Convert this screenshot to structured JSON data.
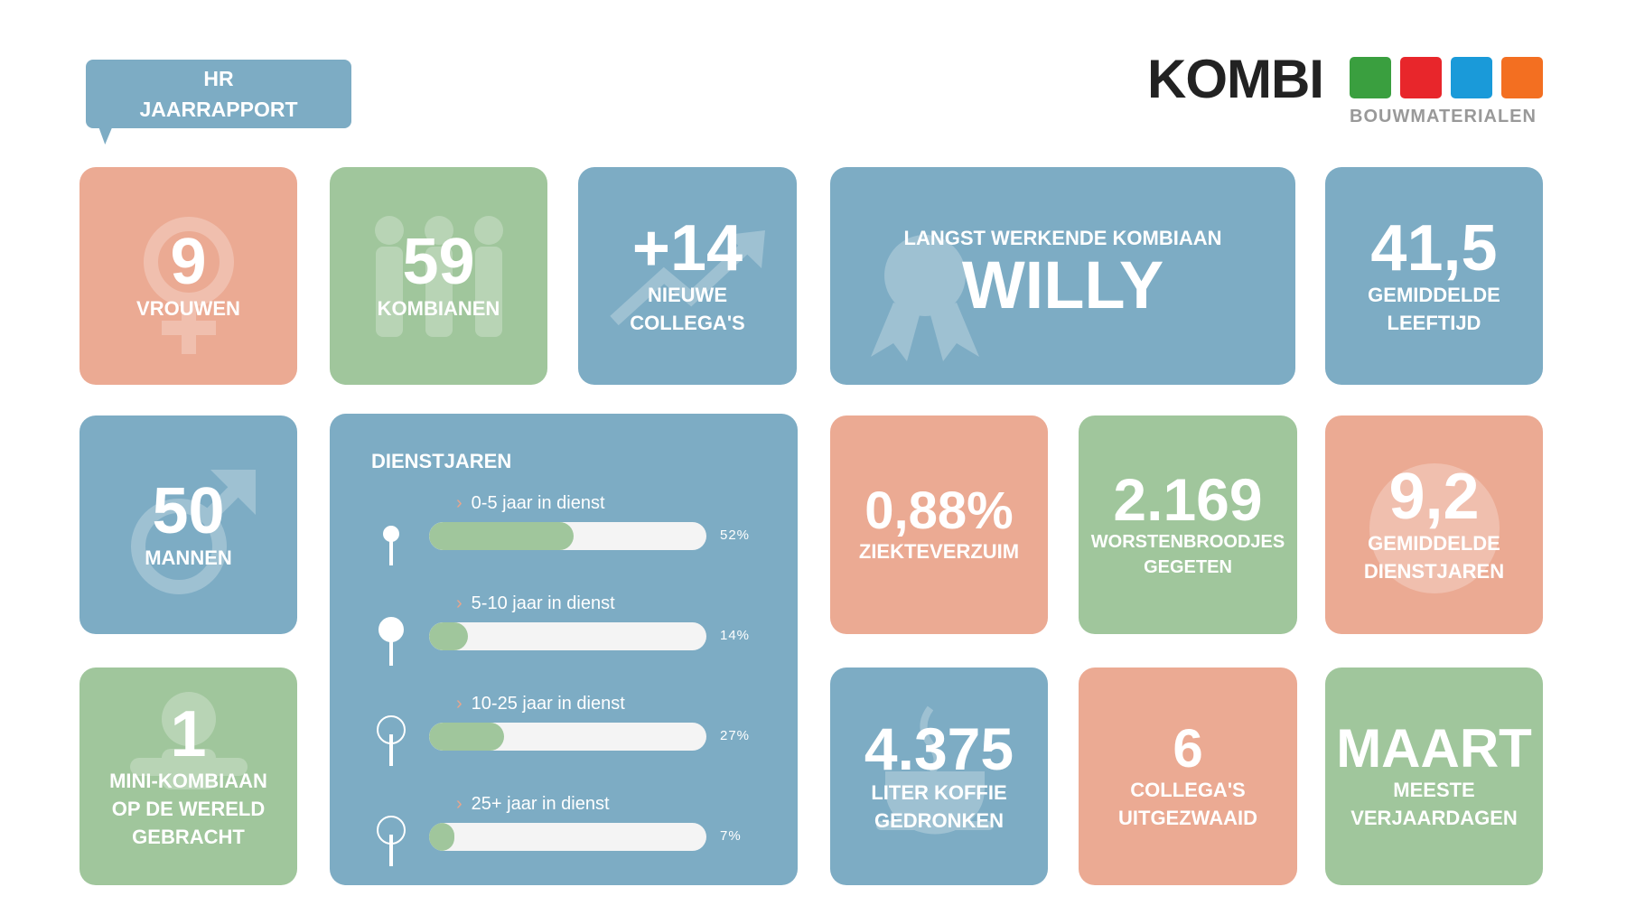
{
  "header": {
    "title_line1": "HR",
    "title_line2": "JAARRAPPORT"
  },
  "logo": {
    "name": "KOMBI",
    "tagline": "BOUWMATERIALEN",
    "colors": [
      "#3a9f3f",
      "#e8262b",
      "#1a9ad9",
      "#f36f21"
    ]
  },
  "colors": {
    "salmon": "#ebaa93",
    "green": "#a0c69c",
    "blue": "#7dacc4"
  },
  "tiles": {
    "vrouwen": {
      "value": "9",
      "label": "VROUWEN",
      "icon": "female-symbol-icon"
    },
    "kombianen": {
      "value": "59",
      "label": "KOMBIANEN",
      "icon": "people-icon"
    },
    "nieuwe": {
      "value": "+14",
      "label1": "NIEUWE",
      "label2": "COLLEGA'S",
      "icon": "trend-up-icon"
    },
    "langst": {
      "label": "LANGST WERKENDE KOMBIAAN",
      "value": "WILLY",
      "icon": "award-icon"
    },
    "leeftijd": {
      "value": "41,5",
      "label1": "GEMIDDELDE",
      "label2": "LEEFTIJD"
    },
    "mannen": {
      "value": "50",
      "label": "MANNEN",
      "icon": "male-symbol-icon"
    },
    "ziekte": {
      "value": "0,88%",
      "label": "ZIEKTEVERZUIM"
    },
    "worst": {
      "value": "2.169",
      "label1": "WORSTENBROODJES",
      "label2": "GEGETEN"
    },
    "dienstgem": {
      "value": "9,2",
      "label1": "GEMIDDELDE",
      "label2": "DIENSTJAREN"
    },
    "mini": {
      "value": "1",
      "label1": "MINI-KOMBIAAN",
      "label2": "OP DE WERELD",
      "label3": "GEBRACHT",
      "icon": "baby-icon"
    },
    "koffie": {
      "value": "4.375",
      "label1": "LITER KOFFIE",
      "label2": "GEDRONKEN",
      "icon": "coffee-cup-icon"
    },
    "uitgezwaaid": {
      "value": "6",
      "label1": "COLLEGA'S",
      "label2": "UITGEZWAAID"
    },
    "maart": {
      "value": "MAART",
      "label1": "MEESTE",
      "label2": "VERJAARDAGEN"
    }
  },
  "dienstjaren": {
    "title": "DIENSTJAREN",
    "rows": [
      {
        "label": "0-5 jaar in dienst",
        "percent": 52,
        "display": "52%",
        "icon": "sapling-icon"
      },
      {
        "label": "5-10 jaar in dienst",
        "percent": 14,
        "display": "14%",
        "icon": "young-tree-icon"
      },
      {
        "label": "10-25 jaar in dienst",
        "percent": 27,
        "display": "27%",
        "icon": "tree-icon"
      },
      {
        "label": "25+ jaar in dienst",
        "percent": 7,
        "display": "7%",
        "icon": "old-tree-icon"
      }
    ]
  }
}
